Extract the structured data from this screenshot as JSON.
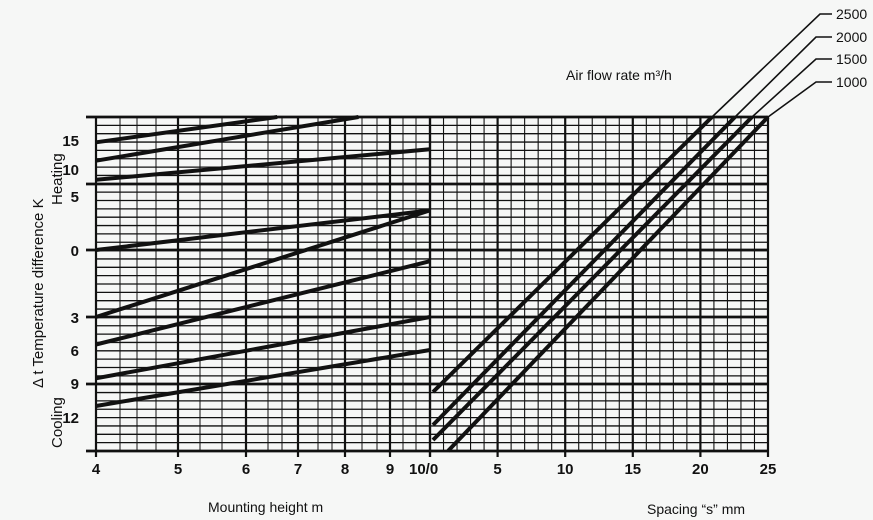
{
  "chart_data": [
    {
      "type": "line",
      "title": "",
      "xlabel": "Mounting height m",
      "ylabel": "Δ t  Temperature difference K",
      "x_ticks": [
        "4",
        "5",
        "6",
        "7",
        "8",
        "9",
        "10/0"
      ],
      "xlim": [
        4,
        10
      ],
      "x_scale": "nonlinear",
      "y_ticks_heating": [
        "15",
        "10",
        "5",
        "0"
      ],
      "y_ticks_cooling": [
        "3",
        "6",
        "9",
        "12"
      ],
      "y_section_labels": [
        "Heating",
        "Cooling"
      ],
      "grid": true,
      "series": [
        {
          "x": [
            4,
            6.6
          ],
          "y": [
            14.5,
            18
          ]
        },
        {
          "x": [
            4,
            8.3
          ],
          "y": [
            10.5,
            18
          ]
        },
        {
          "x": [
            4,
            10
          ],
          "y": [
            6,
            13
          ]
        },
        {
          "x": [
            4,
            10
          ],
          "y": [
            0,
            3
          ]
        },
        {
          "x": [
            4,
            10
          ],
          "y": [
            -3,
            3
          ]
        },
        {
          "x": [
            4,
            10
          ],
          "y": [
            -5.5,
            -0.5
          ]
        },
        {
          "x": [
            4,
            10
          ],
          "y": [
            -8.5,
            -3
          ]
        },
        {
          "x": [
            4,
            10
          ],
          "y": [
            -11,
            -6
          ]
        }
      ]
    },
    {
      "type": "line",
      "title": "",
      "xlabel": "Spacing “s” mm",
      "x_ticks": [
        "5",
        "10",
        "15",
        "20",
        "25"
      ],
      "xlim": [
        0,
        25
      ],
      "legend_title": "Air flow rate m³/h",
      "legend_placement": "top-right",
      "grid": true,
      "series": [
        {
          "name": "2500",
          "x": [
            0,
            25
          ]
        },
        {
          "name": "2000",
          "x": [
            0,
            25
          ]
        },
        {
          "name": "1500",
          "x": [
            0,
            25
          ]
        },
        {
          "name": "1000",
          "x": [
            0,
            25
          ]
        }
      ]
    }
  ],
  "labels": {
    "y_axis": "Δ t  Temperature difference K",
    "heating": "Heating",
    "cooling": "Cooling",
    "x_left": "Mounting height m",
    "x_right": "Spacing “s” mm",
    "air_flow": "Air flow rate m³/h"
  },
  "colors": {
    "ink": "#111111",
    "background": "#f6f7f6"
  }
}
